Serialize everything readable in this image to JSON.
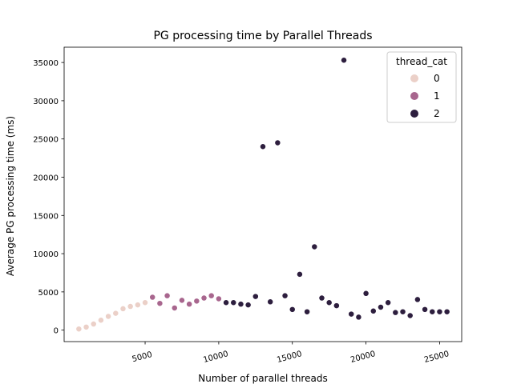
{
  "chart_data": {
    "type": "scatter",
    "title": "PG processing time by Parallel Threads",
    "xlabel": "Number of parallel threads",
    "ylabel": "Average PG processing time (ms)",
    "xlim": [
      -500,
      26500
    ],
    "ylim": [
      -1500,
      37000
    ],
    "xticks": [
      5000,
      10000,
      15000,
      20000,
      25000
    ],
    "yticks": [
      0,
      5000,
      10000,
      15000,
      20000,
      25000,
      30000,
      35000
    ],
    "grid": false,
    "legend": {
      "title": "thread_cat",
      "placement": "top-right",
      "entries": [
        {
          "label": "0",
          "color": "#ebd0c8"
        },
        {
          "label": "1",
          "color": "#a8668e"
        },
        {
          "label": "2",
          "color": "#2d1e3e"
        }
      ]
    },
    "series": [
      {
        "name": "0",
        "color": "#ebd0c8",
        "points": [
          [
            500,
            150
          ],
          [
            1000,
            400
          ],
          [
            1500,
            800
          ],
          [
            2000,
            1300
          ],
          [
            2500,
            1800
          ],
          [
            3000,
            2200
          ],
          [
            3500,
            2800
          ],
          [
            4000,
            3100
          ],
          [
            4500,
            3300
          ],
          [
            5000,
            3600
          ]
        ]
      },
      {
        "name": "1",
        "color": "#a8668e",
        "points": [
          [
            5500,
            4300
          ],
          [
            6000,
            3500
          ],
          [
            6500,
            4500
          ],
          [
            7000,
            2900
          ],
          [
            7500,
            3900
          ],
          [
            8000,
            3400
          ],
          [
            8500,
            3800
          ],
          [
            9000,
            4200
          ],
          [
            9500,
            4500
          ],
          [
            10000,
            4100
          ]
        ]
      },
      {
        "name": "2",
        "color": "#2d1e3e",
        "points": [
          [
            10500,
            3600
          ],
          [
            11000,
            3600
          ],
          [
            11500,
            3400
          ],
          [
            12000,
            3300
          ],
          [
            12500,
            4400
          ],
          [
            13000,
            24000
          ],
          [
            13500,
            3700
          ],
          [
            14000,
            24500
          ],
          [
            14500,
            4500
          ],
          [
            15000,
            2700
          ],
          [
            15500,
            7300
          ],
          [
            16000,
            2400
          ],
          [
            16500,
            10900
          ],
          [
            17000,
            4200
          ],
          [
            17500,
            3600
          ],
          [
            18000,
            3200
          ],
          [
            18500,
            35300
          ],
          [
            19000,
            2100
          ],
          [
            19500,
            1700
          ],
          [
            20000,
            4800
          ],
          [
            20500,
            2500
          ],
          [
            21000,
            3000
          ],
          [
            21500,
            3600
          ],
          [
            22000,
            2300
          ],
          [
            22500,
            2400
          ],
          [
            23000,
            1900
          ],
          [
            23500,
            4000
          ],
          [
            24000,
            2700
          ],
          [
            24500,
            2400
          ],
          [
            25000,
            2400
          ],
          [
            25500,
            2400
          ]
        ]
      }
    ]
  }
}
